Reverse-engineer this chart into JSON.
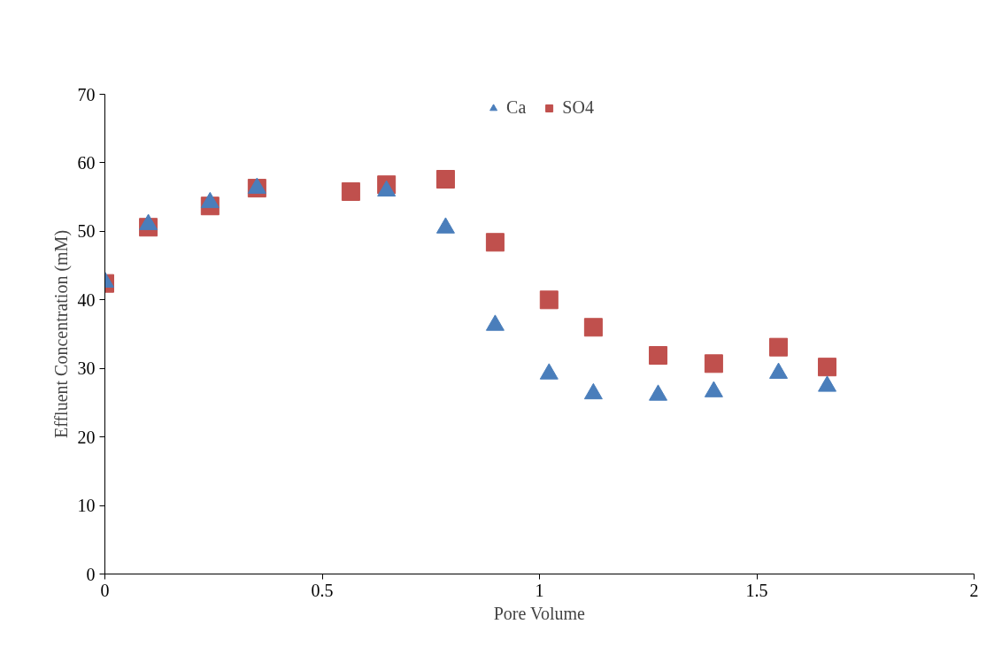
{
  "chart_data": {
    "type": "scatter",
    "xlabel": "Pore Volume",
    "ylabel": "Effluent Concentration (mM)",
    "x": [
      0,
      0.1,
      0.242,
      0.35,
      0.566,
      0.648,
      0.784,
      0.898,
      1.022,
      1.124,
      1.273,
      1.401,
      1.55,
      1.662
    ],
    "series": [
      {
        "name": "Ca",
        "color": "#4a7ebb",
        "marker": "triangle",
        "values": [
          42.6,
          51,
          54.2,
          56.3,
          null,
          55.9,
          50.5,
          36.3,
          29.2,
          26.3,
          26.1,
          26.6,
          29.3,
          27.4
        ]
      },
      {
        "name": "SO4",
        "color": "#c0504d",
        "marker": "square",
        "values": [
          42.4,
          50.6,
          53.7,
          56.3,
          55.8,
          56.8,
          57.6,
          48.4,
          40.0,
          36.0,
          31.9,
          30.7,
          33.1,
          30.2
        ]
      }
    ],
    "xlim": [
      0,
      2
    ],
    "xticks": [
      0,
      {
        "value": 0.5,
        "label": "0.5"
      },
      1,
      {
        "value": 1.5,
        "label": "1.5"
      },
      2
    ],
    "ylim": [
      0,
      70
    ],
    "yticks": [
      0,
      10,
      20,
      30,
      40,
      50,
      60,
      70
    ],
    "grid": false,
    "legend": "top"
  }
}
